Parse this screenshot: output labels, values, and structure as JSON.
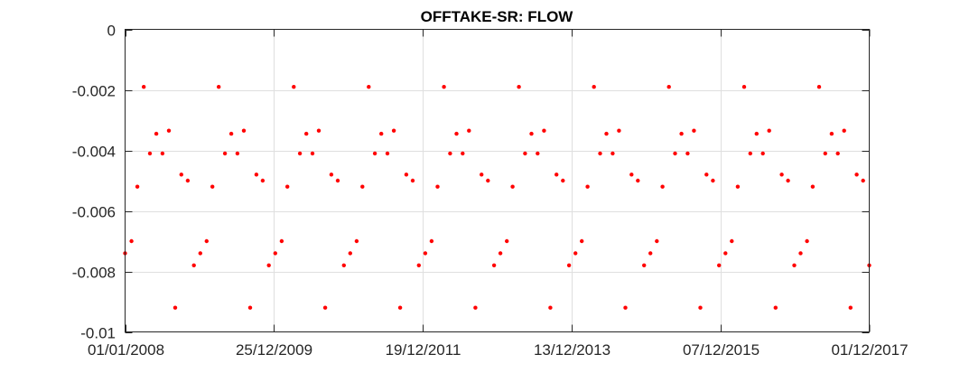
{
  "chart_data": {
    "type": "scatter",
    "title": "OFFTAKE-SR: FLOW",
    "xlabel": "",
    "ylabel": "",
    "x_type": "date",
    "x_tick_labels": [
      "01/01/2008",
      "25/12/2009",
      "19/12/2011",
      "13/12/2013",
      "07/12/2015",
      "01/12/2017"
    ],
    "xlim": [
      "2008-01-01",
      "2017-12-01"
    ],
    "ylim": [
      -0.01,
      0
    ],
    "y_ticks": [
      0,
      -0.002,
      -0.004,
      -0.006,
      -0.008,
      -0.01
    ],
    "y_tick_labels": [
      "0",
      "-0.002",
      "-0.004",
      "-0.006",
      "-0.008",
      "-0.01"
    ],
    "grid": true,
    "marker_color": "#ff0000",
    "series": [
      {
        "x": [
          "2008-01-01",
          "2008-02-01",
          "2008-03-01",
          "2008-04-01",
          "2008-05-01",
          "2008-06-01",
          "2008-07-01",
          "2008-08-01",
          "2008-09-01",
          "2008-10-01",
          "2008-11-01",
          "2008-12-01",
          "2009-01-01",
          "2009-02-01",
          "2009-03-01",
          "2009-04-01",
          "2009-05-01",
          "2009-06-01",
          "2009-07-01",
          "2009-08-01",
          "2009-09-01",
          "2009-10-01",
          "2009-11-01",
          "2009-12-01",
          "2010-01-01",
          "2010-02-01",
          "2010-03-01",
          "2010-04-01",
          "2010-05-01",
          "2010-06-01",
          "2010-07-01",
          "2010-08-01",
          "2010-09-01",
          "2010-10-01",
          "2010-11-01",
          "2010-12-01",
          "2011-01-01",
          "2011-02-01",
          "2011-03-01",
          "2011-04-01",
          "2011-05-01",
          "2011-06-01",
          "2011-07-01",
          "2011-08-01",
          "2011-09-01",
          "2011-10-01",
          "2011-11-01",
          "2011-12-01",
          "2012-01-01",
          "2012-02-01",
          "2012-03-01",
          "2012-04-01",
          "2012-05-01",
          "2012-06-01",
          "2012-07-01",
          "2012-08-01",
          "2012-09-01",
          "2012-10-01",
          "2012-11-01",
          "2012-12-01",
          "2013-01-01",
          "2013-02-01",
          "2013-03-01",
          "2013-04-01",
          "2013-05-01",
          "2013-06-01",
          "2013-07-01",
          "2013-08-01",
          "2013-09-01",
          "2013-10-01",
          "2013-11-01",
          "2013-12-01",
          "2014-01-01",
          "2014-02-01",
          "2014-03-01",
          "2014-04-01",
          "2014-05-01",
          "2014-06-01",
          "2014-07-01",
          "2014-08-01",
          "2014-09-01",
          "2014-10-01",
          "2014-11-01",
          "2014-12-01",
          "2015-01-01",
          "2015-02-01",
          "2015-03-01",
          "2015-04-01",
          "2015-05-01",
          "2015-06-01",
          "2015-07-01",
          "2015-08-01",
          "2015-09-01",
          "2015-10-01",
          "2015-11-01",
          "2015-12-01",
          "2016-01-01",
          "2016-02-01",
          "2016-03-01",
          "2016-04-01",
          "2016-05-01",
          "2016-06-01",
          "2016-07-01",
          "2016-08-01",
          "2016-09-01",
          "2016-10-01",
          "2016-11-01",
          "2016-12-01",
          "2017-01-01",
          "2017-02-01",
          "2017-03-01",
          "2017-04-01",
          "2017-05-01",
          "2017-06-01",
          "2017-07-01",
          "2017-08-01",
          "2017-09-01",
          "2017-10-01",
          "2017-11-01",
          "2017-12-01"
        ],
        "y": [
          -0.0074,
          -0.007,
          -0.0052,
          -0.0019,
          -0.0041,
          -0.00345,
          -0.0041,
          -0.00335,
          -0.0092,
          -0.0048,
          -0.005,
          -0.0078,
          -0.0074,
          -0.007,
          -0.0052,
          -0.0019,
          -0.0041,
          -0.00345,
          -0.0041,
          -0.00335,
          -0.0092,
          -0.0048,
          -0.005,
          -0.0078,
          -0.0074,
          -0.007,
          -0.0052,
          -0.0019,
          -0.0041,
          -0.00345,
          -0.0041,
          -0.00335,
          -0.0092,
          -0.0048,
          -0.005,
          -0.0078,
          -0.0074,
          -0.007,
          -0.0052,
          -0.0019,
          -0.0041,
          -0.00345,
          -0.0041,
          -0.00335,
          -0.0092,
          -0.0048,
          -0.005,
          -0.0078,
          -0.0074,
          -0.007,
          -0.0052,
          -0.0019,
          -0.0041,
          -0.00345,
          -0.0041,
          -0.00335,
          -0.0092,
          -0.0048,
          -0.005,
          -0.0078,
          -0.0074,
          -0.007,
          -0.0052,
          -0.0019,
          -0.0041,
          -0.00345,
          -0.0041,
          -0.00335,
          -0.0092,
          -0.0048,
          -0.005,
          -0.0078,
          -0.0074,
          -0.007,
          -0.0052,
          -0.0019,
          -0.0041,
          -0.00345,
          -0.0041,
          -0.00335,
          -0.0092,
          -0.0048,
          -0.005,
          -0.0078,
          -0.0074,
          -0.007,
          -0.0052,
          -0.0019,
          -0.0041,
          -0.00345,
          -0.0041,
          -0.00335,
          -0.0092,
          -0.0048,
          -0.005,
          -0.0078,
          -0.0074,
          -0.007,
          -0.0052,
          -0.0019,
          -0.0041,
          -0.00345,
          -0.0041,
          -0.00335,
          -0.0092,
          -0.0048,
          -0.005,
          -0.0078,
          -0.0074,
          -0.007,
          -0.0052,
          -0.0019,
          -0.0041,
          -0.00345,
          -0.0041,
          -0.00335,
          -0.0092,
          -0.0048,
          -0.005,
          -0.0078
        ]
      }
    ]
  }
}
